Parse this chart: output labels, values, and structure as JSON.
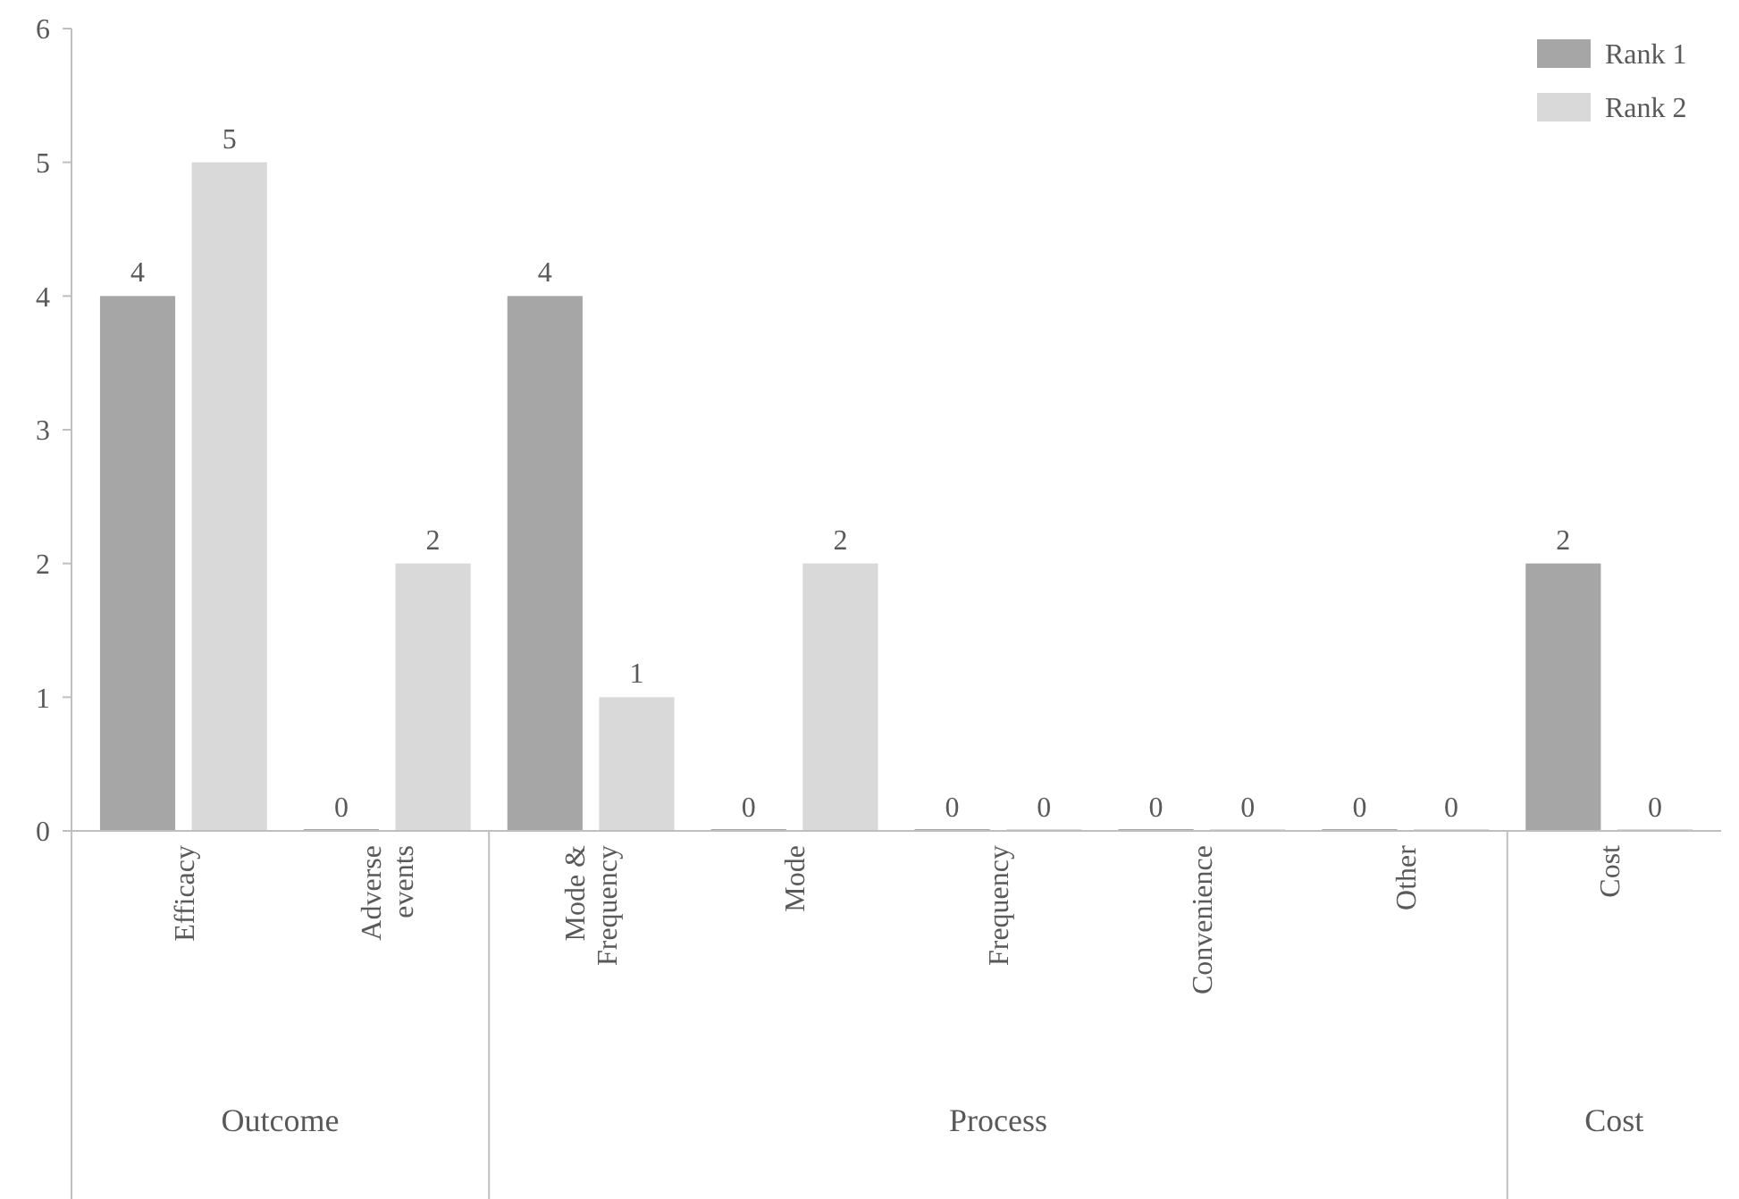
{
  "chart_data": {
    "type": "bar",
    "categories": [
      "Efficacy",
      "Adverse events",
      "Mode & Frequency",
      "Mode",
      "Frequency",
      "Convenience",
      "Other",
      "Cost"
    ],
    "series": [
      {
        "name": "Rank 1",
        "color": "#a6a6a6",
        "values": [
          4,
          0,
          4,
          0,
          0,
          0,
          0,
          2
        ]
      },
      {
        "name": "Rank 2",
        "color": "#d9d9d9",
        "values": [
          5,
          2,
          1,
          2,
          0,
          0,
          0,
          0
        ]
      }
    ],
    "ylim": [
      0,
      6
    ],
    "yticks": [
      0,
      1,
      2,
      3,
      4,
      5,
      6
    ],
    "grid": false,
    "legend": "top right",
    "data_labels": true,
    "annotations": [
      "Outcome",
      "Process",
      "Cost"
    ]
  }
}
